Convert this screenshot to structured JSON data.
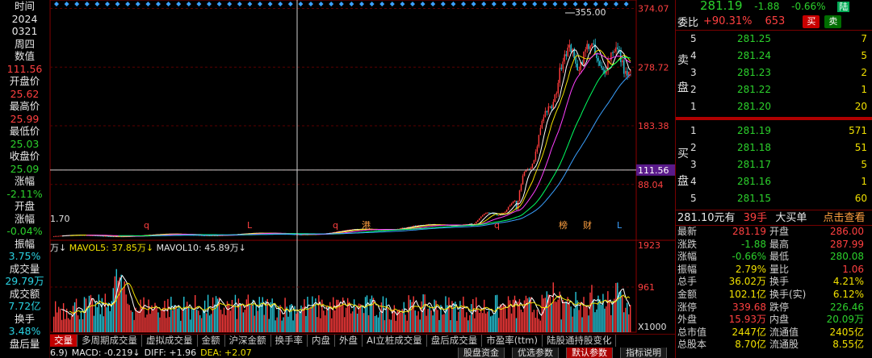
{
  "left_panel": [
    {
      "label": "时间",
      "cls": "c-white"
    },
    {
      "label": "2024",
      "cls": "c-white"
    },
    {
      "label": "0321",
      "cls": "c-white"
    },
    {
      "label": "周四",
      "cls": "c-white"
    },
    {
      "label": "数值",
      "cls": "c-white"
    },
    {
      "label": "111.56",
      "cls": "c-red"
    },
    {
      "label": "开盘价",
      "cls": "c-white"
    },
    {
      "label": "25.62",
      "cls": "c-red"
    },
    {
      "label": "最高价",
      "cls": "c-white"
    },
    {
      "label": "25.99",
      "cls": "c-red"
    },
    {
      "label": "最低价",
      "cls": "c-white"
    },
    {
      "label": "25.03",
      "cls": "c-green"
    },
    {
      "label": "收盘价",
      "cls": "c-white"
    },
    {
      "label": "25.09",
      "cls": "c-green"
    },
    {
      "label": "涨幅",
      "cls": "c-white"
    },
    {
      "label": "-2.11%",
      "cls": "c-green"
    },
    {
      "label": "开盘",
      "cls": "c-white"
    },
    {
      "label": "涨幅",
      "cls": "c-white"
    },
    {
      "label": "-0.04%",
      "cls": "c-green"
    },
    {
      "label": "振幅",
      "cls": "c-white"
    },
    {
      "label": "3.75%",
      "cls": "c-cyan"
    },
    {
      "label": "成交量",
      "cls": "c-white"
    },
    {
      "label": "29.79万",
      "cls": "c-cyan"
    },
    {
      "label": "成交额",
      "cls": "c-white"
    },
    {
      "label": "7.72亿",
      "cls": "c-cyan"
    },
    {
      "label": "换手",
      "cls": "c-white"
    },
    {
      "label": "3.48%",
      "cls": "c-cyan"
    },
    {
      "label": "盘后量",
      "cls": "c-white"
    }
  ],
  "chart": {
    "price_axis_labels": [
      "374.07",
      "278.72",
      "183.38",
      "111.56",
      "88.04"
    ],
    "max_label": "355.00",
    "min_label": "1.70",
    "crosshair_value": "111.56",
    "event_markers": [
      "q",
      "L",
      "q",
      "港",
      "q",
      "榜",
      "财",
      "L"
    ],
    "volume_header": {
      "prefix": "万↓",
      "ma5": "MAVOL5: 37.85万↓",
      "ma10": "MAVOL10: 45.89万↓"
    },
    "volume_axis_labels": [
      "1923",
      "961",
      "X1000"
    ]
  },
  "right_panel": {
    "quote": {
      "price": "281.19",
      "change": "-1.88",
      "pct": "-0.66%",
      "tag": "陆"
    },
    "webi": {
      "label": "委比",
      "ratio": "+90.31%",
      "diff": "653",
      "buy_btn": "买",
      "sell_btn": "卖"
    },
    "sell_label_1": "卖",
    "sell_label_2": "盘",
    "buy_label_1": "买",
    "buy_label_2": "盘",
    "asks": [
      {
        "level": "5",
        "price": "281.25",
        "vol": "7"
      },
      {
        "level": "4",
        "price": "281.24",
        "vol": "5"
      },
      {
        "level": "3",
        "price": "281.23",
        "vol": "2"
      },
      {
        "level": "2",
        "price": "281.22",
        "vol": "1"
      },
      {
        "level": "1",
        "price": "281.20",
        "vol": "20"
      }
    ],
    "bids": [
      {
        "level": "1",
        "price": "281.19",
        "vol": "571"
      },
      {
        "level": "2",
        "price": "281.18",
        "vol": "51"
      },
      {
        "level": "3",
        "price": "281.17",
        "vol": "5"
      },
      {
        "level": "4",
        "price": "281.16",
        "vol": "1"
      },
      {
        "level": "5",
        "price": "281.15",
        "vol": "60"
      }
    ],
    "big_order": {
      "price": "281.10元有",
      "qty": "39手",
      "desc": "大买单",
      "link": "点击查看"
    },
    "stats": [
      {
        "k1": "最新",
        "v1": "281.19",
        "c1": "c-red",
        "k2": "开盘",
        "v2": "286.00",
        "c2": "c-red"
      },
      {
        "k1": "涨跌",
        "v1": "-1.88",
        "c1": "c-green",
        "k2": "最高",
        "v2": "287.99",
        "c2": "c-red"
      },
      {
        "k1": "涨幅",
        "v1": "-0.66%",
        "c1": "c-green",
        "k2": "最低",
        "v2": "280.08",
        "c2": "c-green"
      },
      {
        "k1": "振幅",
        "v1": "2.79%",
        "c1": "c-yellow",
        "k2": "量比",
        "v2": "1.06",
        "c2": "c-red"
      },
      {
        "k1": "总手",
        "v1": "36.02万",
        "c1": "c-yellow",
        "k2": "换手",
        "v2": "4.21%",
        "c2": "c-yellow"
      },
      {
        "k1": "金额",
        "v1": "102.1亿",
        "c1": "c-yellow",
        "k2": "换手(实)",
        "v2": "6.12%",
        "c2": "c-yellow"
      },
      {
        "k1": "涨停",
        "v1": "339.68",
        "c1": "c-red",
        "k2": "跌停",
        "v2": "226.46",
        "c2": "c-green"
      },
      {
        "k1": "外盘",
        "v1": "15.93万",
        "c1": "c-red",
        "k2": "内盘",
        "v2": "20.09万",
        "c2": "c-green"
      },
      {
        "k1": "总市值",
        "v1": "2447亿",
        "c1": "c-yellow",
        "k2": "流通值",
        "v2": "2405亿",
        "c2": "c-yellow"
      },
      {
        "k1": "总股本",
        "v1": "8.70亿",
        "c1": "c-yellow",
        "k2": "流通股",
        "v2": "8.55亿",
        "c2": "c-yellow"
      }
    ]
  },
  "tabs": [
    "交量",
    "多周期成交量",
    "虚拟成交量",
    "金额",
    "沪深金额",
    "换手率",
    "内盘",
    "外盘",
    "AI立桩成交量",
    "盘后成交量",
    "市盈率(ttm)",
    "陆股通持股变化"
  ],
  "indicator_bar": {
    "items": [
      {
        "text": "6.9)",
        "cls": "c-white"
      },
      {
        "text": "MACD: -0.219↓",
        "cls": "c-white"
      },
      {
        "text": "DIFF: +1.96",
        "cls": "c-white"
      },
      {
        "text": "DEA: +2.07",
        "cls": "c-yellow"
      }
    ],
    "buttons": [
      "股盘资金",
      "优选参数",
      "默认参数",
      "指标说明"
    ]
  }
}
